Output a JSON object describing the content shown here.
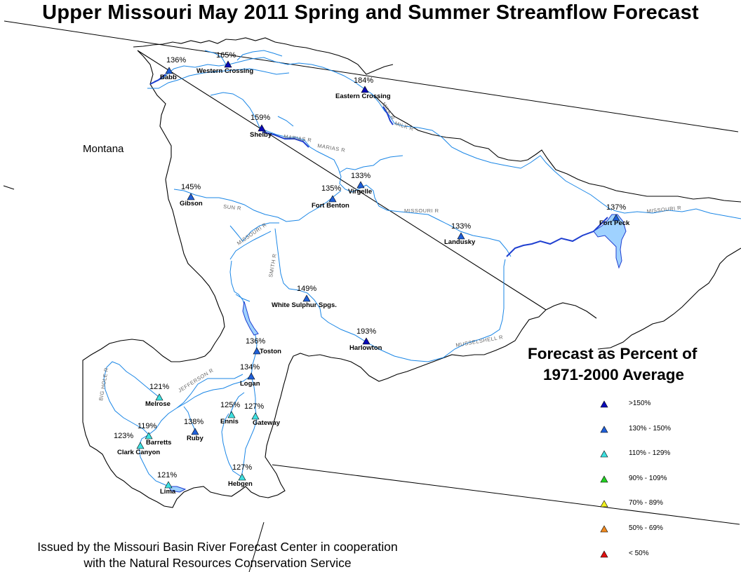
{
  "title": "Upper Missouri May 2011 Spring and Summer Streamflow Forecast",
  "state_label": "Montana",
  "legend": {
    "title_line1": "Forecast as Percent of",
    "title_line2": "1971-2000 Average",
    "items": [
      {
        "label": ">150%",
        "color": "#0a0ab8"
      },
      {
        "label": "130% - 150%",
        "color": "#1f5fd8"
      },
      {
        "label": "110% - 129%",
        "color": "#3ee0e0"
      },
      {
        "label": "90% - 109%",
        "color": "#22d022"
      },
      {
        "label": "70% - 89%",
        "color": "#f0f020"
      },
      {
        "label": "50% - 69%",
        "color": "#f08a20"
      },
      {
        "label": "< 50%",
        "color": "#e01010"
      }
    ]
  },
  "footer": {
    "line1": "Issued by the Missouri Basin River Forecast Center in cooperation",
    "line2": "with the Natural Resources Conservation Service"
  },
  "stations": [
    {
      "name": "Babb",
      "pct": "136%",
      "category": "130% - 150%"
    },
    {
      "name": "Western Crossing",
      "pct": "165%",
      "category": ">150%"
    },
    {
      "name": "Eastern Crossing",
      "pct": "184%",
      "category": ">150%"
    },
    {
      "name": "Shelby",
      "pct": "159%",
      "category": ">150%"
    },
    {
      "name": "Virgelle",
      "pct": "133%",
      "category": "130% - 150%"
    },
    {
      "name": "Fort Benton",
      "pct": "135%",
      "category": "130% - 150%"
    },
    {
      "name": "Gibson",
      "pct": "145%",
      "category": "130% - 150%"
    },
    {
      "name": "Fort Peck",
      "pct": "137%",
      "category": "130% - 150%"
    },
    {
      "name": "Landusky",
      "pct": "133%",
      "category": "130% - 150%"
    },
    {
      "name": "White Sulphur Spgs.",
      "pct": "149%",
      "category": "130% - 150%"
    },
    {
      "name": "Harlowton",
      "pct": "193%",
      "category": ">150%"
    },
    {
      "name": "Toston",
      "pct": "136%",
      "category": "130% - 150%"
    },
    {
      "name": "Logan",
      "pct": "134%",
      "category": "130% - 150%"
    },
    {
      "name": "Melrose",
      "pct": "121%",
      "category": "110% - 129%"
    },
    {
      "name": "Ennis",
      "pct": "125%",
      "category": "110% - 129%"
    },
    {
      "name": "Gateway",
      "pct": "127%",
      "category": "110% - 129%"
    },
    {
      "name": "Ruby",
      "pct": "138%",
      "category": "130% - 150%"
    },
    {
      "name": "Barretts",
      "pct": "119%",
      "category": "110% - 129%"
    },
    {
      "name": "Clark Canyon",
      "pct": "123%",
      "category": "110% - 129%"
    },
    {
      "name": "Hebgen",
      "pct": "127%",
      "category": "110% - 129%"
    },
    {
      "name": "Lima",
      "pct": "121%",
      "category": "110% - 129%"
    }
  ],
  "river_labels": [
    "MARIAS R",
    "MARIAS R",
    "MILK R",
    "MILK R",
    "SUN R",
    "MISSOURI R",
    "MISSOURI R",
    "MISSOURI R",
    "SMITH R",
    "MUSSELSHELL R",
    "JEFFERSON R",
    "BIG HOLE R"
  ]
}
